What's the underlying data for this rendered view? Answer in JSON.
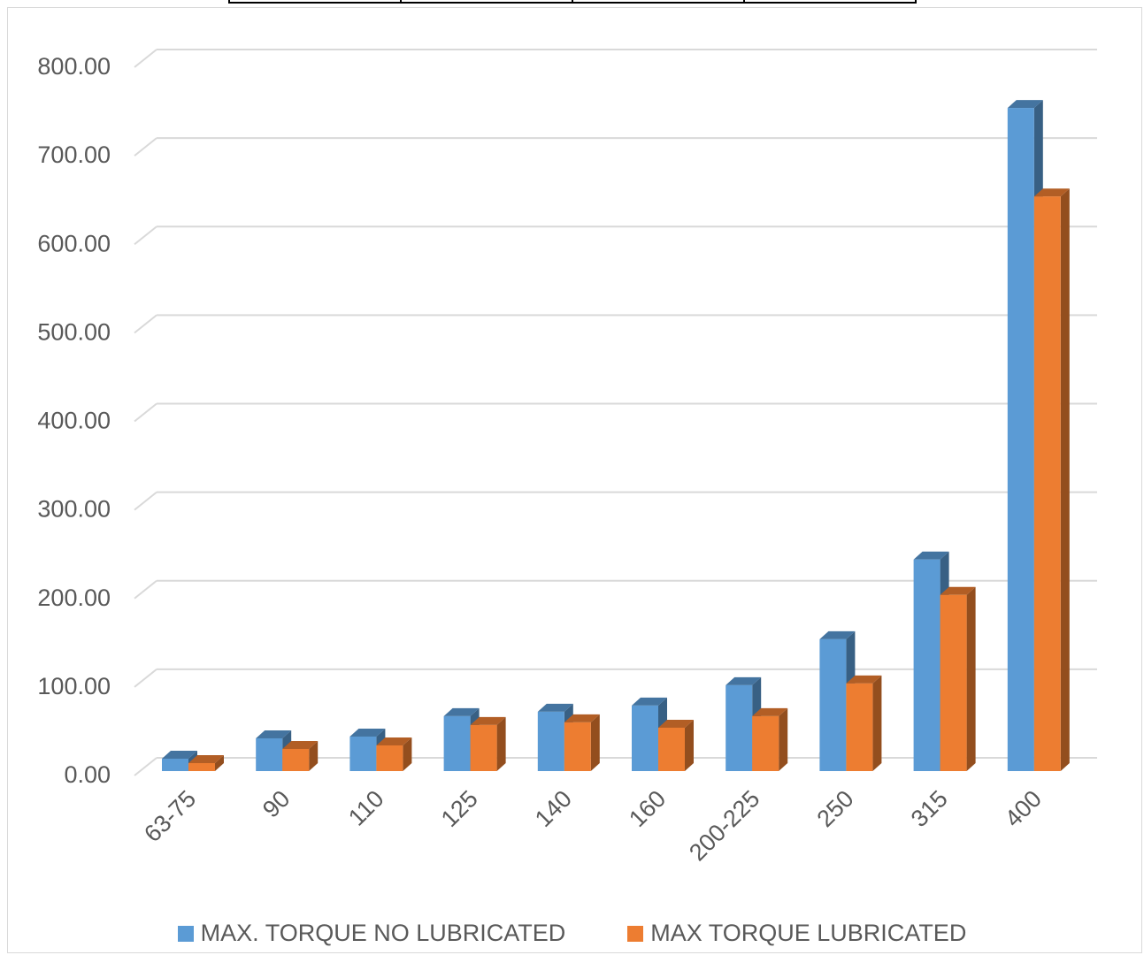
{
  "chart_data": {
    "type": "bar",
    "categories": [
      "63-75",
      "90",
      "110",
      "125",
      "140",
      "160",
      "200-225",
      "250",
      "315",
      "400"
    ],
    "series": [
      {
        "name": "MAX. TORQUE NO LUBRICATED",
        "color": "#5b9bd5",
        "values": [
          15,
          38,
          40,
          63,
          68,
          75,
          98,
          150,
          240,
          750
        ]
      },
      {
        "name": "MAX TORQUE LUBRICATED",
        "color": "#ed7d31",
        "values": [
          10,
          26,
          30,
          53,
          56,
          50,
          63,
          100,
          200,
          650
        ]
      }
    ],
    "yticks": [
      "0.00",
      "100.00",
      "200.00",
      "300.00",
      "400.00",
      "500.00",
      "600.00",
      "700.00",
      "800.00"
    ],
    "ylim": [
      0,
      800
    ],
    "grid": true,
    "legend_position": "bottom"
  }
}
